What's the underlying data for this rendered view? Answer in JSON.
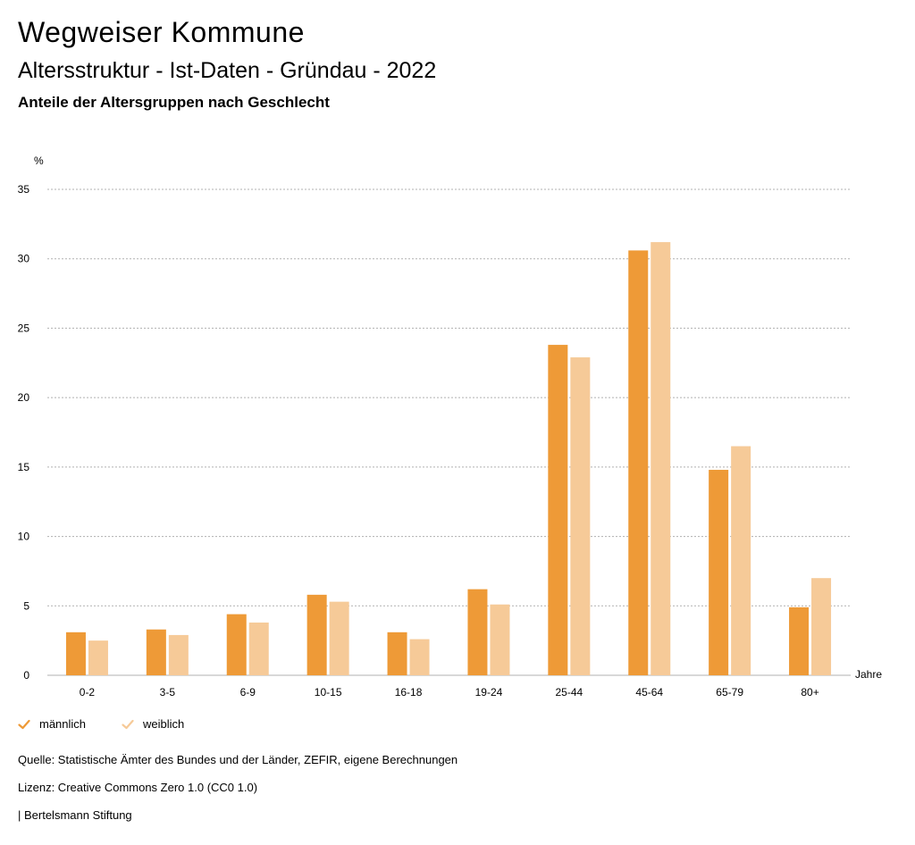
{
  "header": {
    "title": "Wegweiser Kommune",
    "subtitle": "Altersstruktur - Ist-Daten - Gründau - 2022",
    "subsubtitle": "Anteile der Altersgruppen nach Geschlecht"
  },
  "colors": {
    "maennlich": "#ee9a37",
    "weiblich": "#f6ca98",
    "grid": "#b0b0b0"
  },
  "chart_data": {
    "type": "bar",
    "title": "Anteile der Altersgruppen nach Geschlecht",
    "ylabel": "%",
    "xlabel": "Jahre",
    "ylim": [
      0,
      35
    ],
    "yticks": [
      0,
      5,
      10,
      15,
      20,
      25,
      30,
      35
    ],
    "grid": true,
    "legend_position": "bottom-left",
    "categories": [
      "0-2",
      "3-5",
      "6-9",
      "10-15",
      "16-18",
      "19-24",
      "25-44",
      "45-64",
      "65-79",
      "80+"
    ],
    "series": [
      {
        "name": "männlich",
        "values": [
          3.1,
          3.3,
          4.4,
          5.8,
          3.1,
          6.2,
          23.8,
          30.6,
          14.8,
          4.9
        ]
      },
      {
        "name": "weiblich",
        "values": [
          2.5,
          2.9,
          3.8,
          5.3,
          2.6,
          5.1,
          22.9,
          31.2,
          16.5,
          7.0
        ]
      }
    ]
  },
  "legend": {
    "items": [
      "männlich",
      "weiblich"
    ]
  },
  "footer": {
    "source": "Quelle: Statistische Ämter des Bundes und der Länder, ZEFIR, eigene Berechnungen",
    "license": "Lizenz: Creative Commons Zero 1.0 (CC0 1.0)",
    "publisher": "| Bertelsmann Stiftung"
  }
}
